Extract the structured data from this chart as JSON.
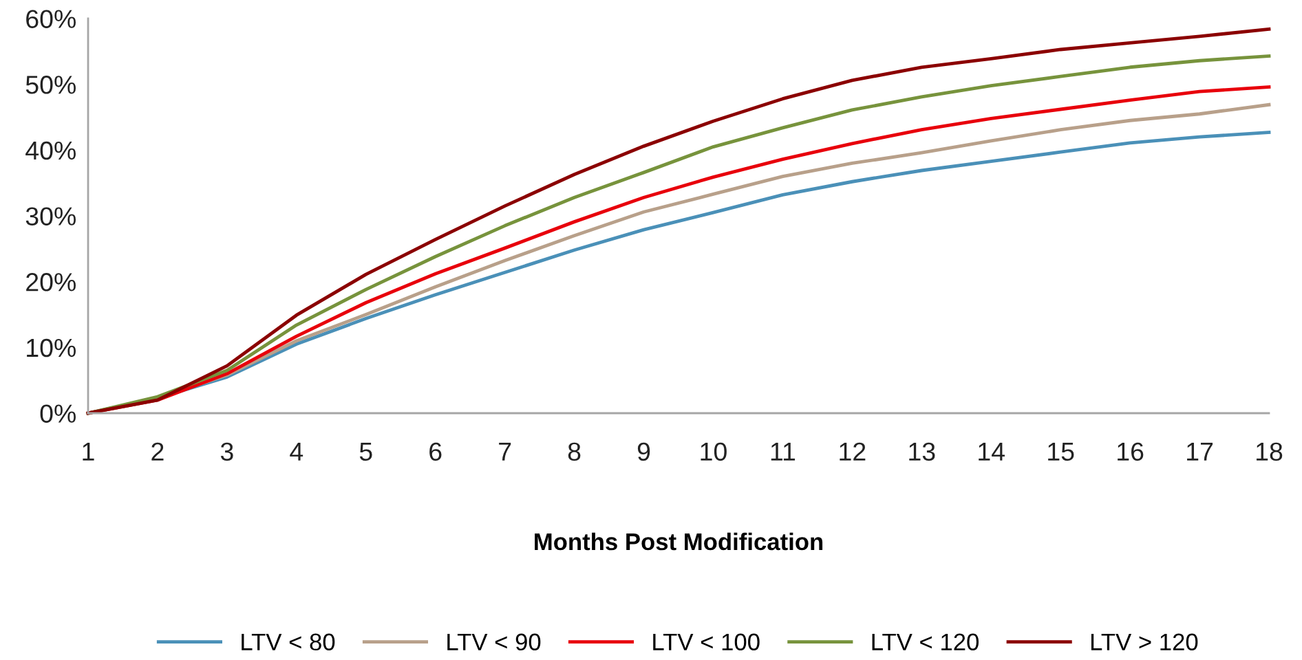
{
  "chart_data": {
    "type": "line",
    "xlabel": "Months Post Modification",
    "x": [
      1,
      2,
      3,
      4,
      5,
      6,
      7,
      8,
      9,
      10,
      11,
      12,
      13,
      14,
      15,
      16,
      17,
      18
    ],
    "xlim": [
      1,
      18
    ],
    "xticks": [
      1,
      2,
      3,
      4,
      5,
      6,
      7,
      8,
      9,
      10,
      11,
      12,
      13,
      14,
      15,
      16,
      17,
      18
    ],
    "ylim": [
      0,
      60
    ],
    "yticks": [
      {
        "value": 0,
        "label": "0%"
      },
      {
        "value": 10,
        "label": "10%"
      },
      {
        "value": 20,
        "label": "20%"
      },
      {
        "value": 30,
        "label": "30%"
      },
      {
        "value": 40,
        "label": "40%"
      },
      {
        "value": 50,
        "label": "50%"
      },
      {
        "value": 60,
        "label": "60%"
      }
    ],
    "grid": false,
    "legend": "bottom",
    "marker": "none",
    "line_style": "solid",
    "series": [
      {
        "name": "LTV < 80",
        "color": "#4a90b8",
        "values": [
          0,
          2.3,
          5.5,
          10.5,
          14.4,
          18.0,
          21.4,
          24.8,
          27.9,
          30.5,
          33.2,
          35.2,
          36.9,
          38.3,
          39.7,
          41.1,
          42.0,
          42.7
        ]
      },
      {
        "name": "LTV < 90",
        "color": "#b8a08a",
        "values": [
          0,
          2.3,
          5.8,
          11.0,
          15.0,
          19.2,
          23.2,
          27.0,
          30.6,
          33.3,
          36.0,
          38.0,
          39.6,
          41.4,
          43.1,
          44.5,
          45.5,
          46.9
        ]
      },
      {
        "name": "LTV < 100",
        "color": "#e8000b",
        "values": [
          0,
          2.0,
          6.0,
          11.7,
          16.8,
          21.2,
          25.1,
          29.1,
          32.8,
          35.9,
          38.6,
          41.0,
          43.1,
          44.8,
          46.2,
          47.6,
          48.9,
          49.6
        ]
      },
      {
        "name": "LTV < 120",
        "color": "#77933c",
        "values": [
          0,
          2.5,
          6.5,
          13.4,
          18.8,
          23.8,
          28.5,
          32.8,
          36.6,
          40.5,
          43.4,
          46.1,
          48.1,
          49.8,
          51.2,
          52.6,
          53.6,
          54.3
        ]
      },
      {
        "name": "LTV > 120",
        "color": "#8b0000",
        "values": [
          0,
          2.0,
          7.2,
          14.9,
          21.1,
          26.4,
          31.5,
          36.3,
          40.6,
          44.4,
          47.8,
          50.6,
          52.6,
          53.9,
          55.3,
          56.3,
          57.3,
          58.4
        ]
      }
    ]
  }
}
